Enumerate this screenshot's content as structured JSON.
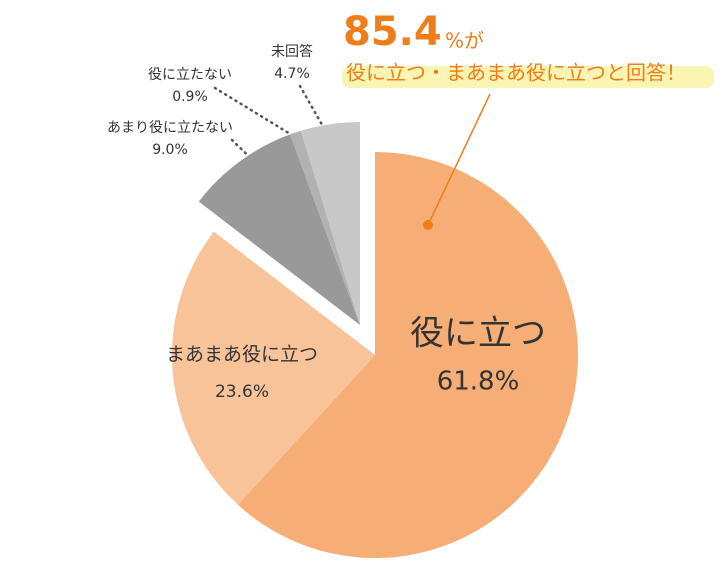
{
  "chart_data": {
    "type": "pie",
    "categories": [
      "役に立つ",
      "まあまあ役に立つ",
      "あまり役に立たない",
      "役に立たない",
      "未回答"
    ],
    "values": [
      61.8,
      23.6,
      9.0,
      0.9,
      4.7
    ],
    "value_labels": [
      "61.8%",
      "23.6%",
      "9.0%",
      "0.9%",
      "4.7%"
    ],
    "colors": [
      "#f7ae76",
      "#f9c39a",
      "#999999",
      "#b2b2b2",
      "#c8c8c8"
    ],
    "annotation": {
      "number": "85.4",
      "unit": "%が",
      "text": "役に立つ・まあまあ役に立つと回答！"
    }
  }
}
